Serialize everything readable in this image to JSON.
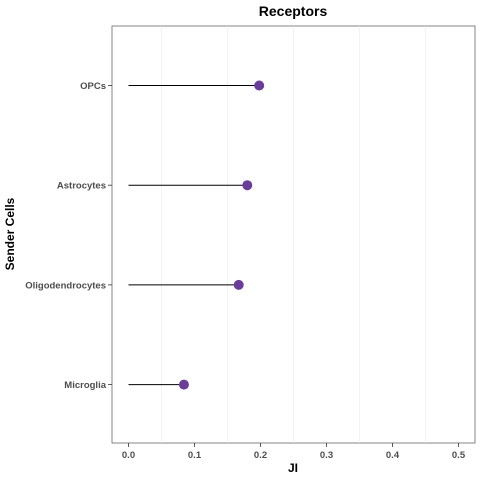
{
  "chart_data": {
    "type": "lollipop",
    "title": "Receptors",
    "xlabel": "JI",
    "ylabel": "Sender Cells",
    "xlim": [
      0.0,
      0.5
    ],
    "x_ticks": [
      0.0,
      0.1,
      0.2,
      0.3,
      0.4,
      0.5
    ],
    "x_tick_labels": [
      "0.0",
      "0.1",
      "0.2",
      "0.3",
      "0.4",
      "0.5"
    ],
    "minor_gridlines": [
      0.05,
      0.15,
      0.25,
      0.35,
      0.45
    ],
    "grid": true,
    "categories": [
      "OPCs",
      "Astrocytes",
      "Oligodendrocytes",
      "Microglia"
    ],
    "values": [
      0.198,
      0.18,
      0.167,
      0.084
    ],
    "point_color": "#6a3d9a",
    "stem_color": "#000000"
  }
}
